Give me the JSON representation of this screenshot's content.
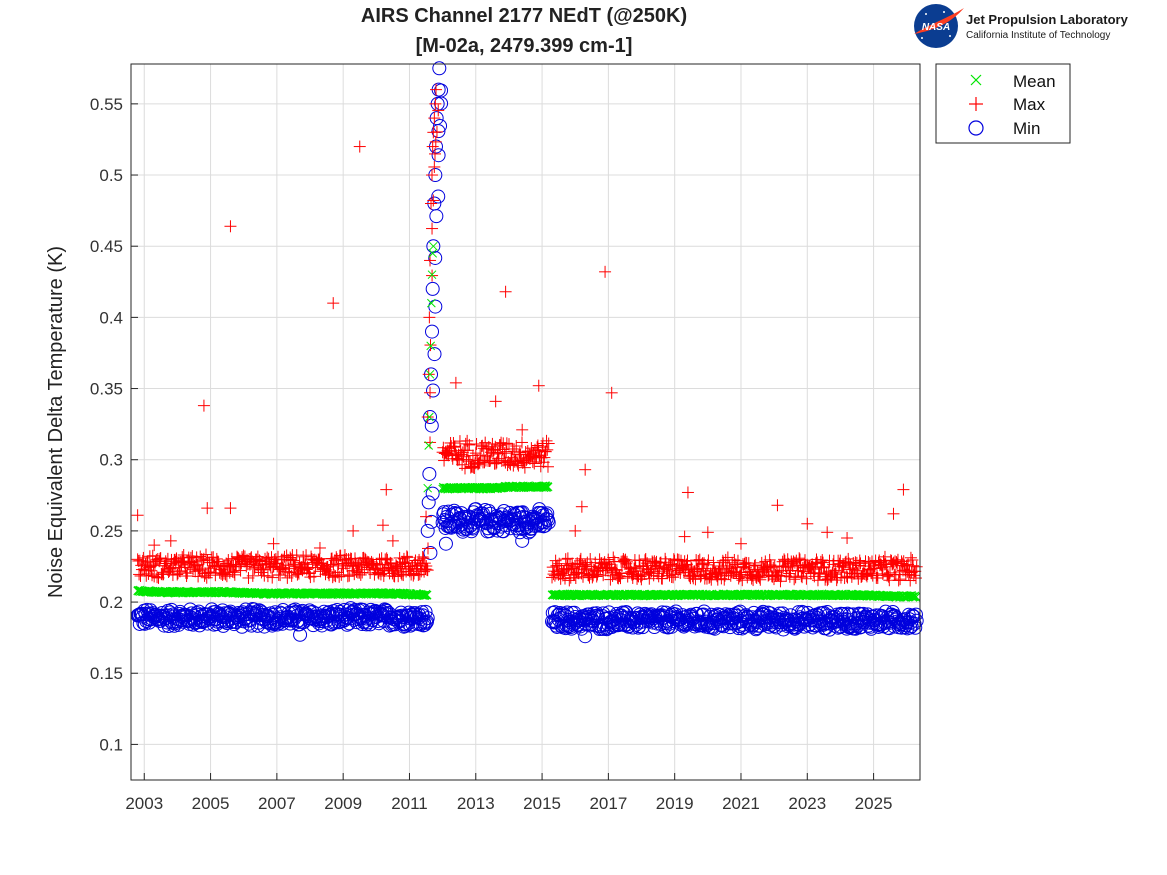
{
  "chart_data": {
    "type": "scatter",
    "title_line1": "AIRS Channel 2177 NEdT (@250K)",
    "title_line2": "[M-02a, 2479.399 cm-1]",
    "ylabel": "Noise Equivalent Delta Temperature (K)",
    "xlabel": "",
    "xlim": [
      2002.6,
      2026.4
    ],
    "ylim": [
      0.075,
      0.578
    ],
    "x_ticks": [
      2003,
      2005,
      2007,
      2009,
      2011,
      2013,
      2015,
      2017,
      2019,
      2021,
      2023,
      2025
    ],
    "x_tick_labels": [
      "2003",
      "2005",
      "2007",
      "2009",
      "2011",
      "2013",
      "2015",
      "2017",
      "2019",
      "2021",
      "2023",
      "2025"
    ],
    "y_ticks": [
      0.1,
      0.15,
      0.2,
      0.25,
      0.3,
      0.35,
      0.4,
      0.45,
      0.5,
      0.55
    ],
    "y_tick_labels": [
      "0.1",
      "0.15",
      "0.2",
      "0.25",
      "0.3",
      "0.35",
      "0.4",
      "0.45",
      "0.5",
      "0.55"
    ],
    "grid": true,
    "legend_position": "top-right-outside",
    "series": [
      {
        "name": "Mean",
        "marker": "x",
        "color": "#00e600",
        "segments": [
          {
            "x": [
              2002.8,
              2003.5,
              2004.5,
              2005.5,
              2006.5,
              2007.5,
              2008.5,
              2009.5,
              2010.5,
              2011.55
            ],
            "y": [
              0.208,
              0.207,
              0.207,
              0.207,
              0.206,
              0.206,
              0.206,
              0.206,
              0.206,
              0.205
            ]
          },
          {
            "x": [
              2012.0,
              2012.5,
              2013.0,
              2013.5,
              2014.0,
              2014.5,
              2015.2
            ],
            "y": [
              0.28,
              0.28,
              0.28,
              0.28,
              0.281,
              0.281,
              0.281
            ]
          },
          {
            "x": [
              2015.3,
              2016.5,
              2017.5,
              2018.5,
              2019.5,
              2020.5,
              2021.5,
              2022.5,
              2023.5,
              2024.5,
              2025.5,
              2026.3
            ],
            "y": [
              0.205,
              0.205,
              0.205,
              0.205,
              0.205,
              0.205,
              0.205,
              0.205,
              0.205,
              0.205,
              0.204,
              0.204
            ]
          }
        ],
        "spike": {
          "x": [
            2011.55,
            2011.58,
            2011.6,
            2011.62,
            2011.64,
            2011.66,
            2011.68,
            2011.7,
            2011.72
          ],
          "y": [
            0.28,
            0.31,
            0.33,
            0.36,
            0.38,
            0.41,
            0.43,
            0.445,
            0.45
          ]
        }
      },
      {
        "name": "Max",
        "marker": "+",
        "color": "#ff0000",
        "segments": [
          {
            "x": [
              2002.8,
              2011.55
            ],
            "y_center": 0.225,
            "spread": 0.009
          },
          {
            "x": [
              2012.0,
              2015.2
            ],
            "y_center": 0.304,
            "spread": 0.011
          },
          {
            "x": [
              2015.3,
              2026.3
            ],
            "y_center": 0.223,
            "spread": 0.009
          }
        ],
        "spike": {
          "x": [
            2011.5,
            2011.55,
            2011.58,
            2011.6,
            2011.62,
            2011.65,
            2011.68,
            2011.7,
            2011.72,
            2011.75,
            2011.78,
            2011.8
          ],
          "y": [
            0.26,
            0.33,
            0.36,
            0.4,
            0.44,
            0.48,
            0.5,
            0.52,
            0.53,
            0.54,
            0.55,
            0.56
          ]
        },
        "outliers": {
          "x": [
            2002.8,
            2003.3,
            2003.8,
            2004.8,
            2004.9,
            2005.6,
            2005.6,
            2006.9,
            2008.3,
            2008.7,
            2009.3,
            2009.5,
            2010.2,
            2010.3,
            2010.5,
            2012.4,
            2013.6,
            2013.9,
            2014.4,
            2014.9,
            2016.0,
            2016.2,
            2016.3,
            2016.9,
            2017.1,
            2019.3,
            2019.4,
            2020.0,
            2021.0,
            2022.1,
            2023.0,
            2023.6,
            2024.2,
            2025.6,
            2025.9
          ],
          "y": [
            0.261,
            0.24,
            0.243,
            0.338,
            0.266,
            0.266,
            0.464,
            0.241,
            0.238,
            0.41,
            0.25,
            0.52,
            0.254,
            0.279,
            0.243,
            0.354,
            0.341,
            0.418,
            0.321,
            0.352,
            0.25,
            0.267,
            0.293,
            0.432,
            0.347,
            0.246,
            0.277,
            0.249,
            0.241,
            0.268,
            0.255,
            0.249,
            0.245,
            0.262,
            0.279
          ]
        }
      },
      {
        "name": "Min",
        "marker": "o",
        "color": "#0000dd",
        "segments": [
          {
            "x": [
              2002.8,
              2011.55
            ],
            "y_center": 0.189,
            "spread": 0.007
          },
          {
            "x": [
              2012.0,
              2015.2
            ],
            "y_center": 0.257,
            "spread": 0.009
          },
          {
            "x": [
              2015.3,
              2026.3
            ],
            "y_center": 0.187,
            "spread": 0.007
          }
        ],
        "spike": {
          "x": [
            2011.55,
            2011.58,
            2011.6,
            2011.62,
            2011.65,
            2011.68,
            2011.7,
            2011.72,
            2011.75,
            2011.78,
            2011.8,
            2011.82,
            2011.85,
            2011.88,
            2011.9
          ],
          "y": [
            0.25,
            0.27,
            0.29,
            0.33,
            0.36,
            0.39,
            0.42,
            0.45,
            0.48,
            0.5,
            0.52,
            0.54,
            0.55,
            0.56,
            0.575
          ]
        },
        "outliers": {
          "x": [
            2007.7,
            2012.1,
            2014.4,
            2016.3
          ],
          "y": [
            0.177,
            0.241,
            0.243,
            0.176
          ]
        }
      }
    ]
  },
  "legend": {
    "items": [
      {
        "label": "Mean",
        "marker": "x",
        "color": "#00e600"
      },
      {
        "label": "Max",
        "marker": "+",
        "color": "#ff0000"
      },
      {
        "label": "Min",
        "marker": "o",
        "color": "#0000dd"
      }
    ]
  },
  "logo": {
    "line1": "Jet Propulsion Laboratory",
    "line2": "California Institute of Technology",
    "badge": "NASA"
  }
}
